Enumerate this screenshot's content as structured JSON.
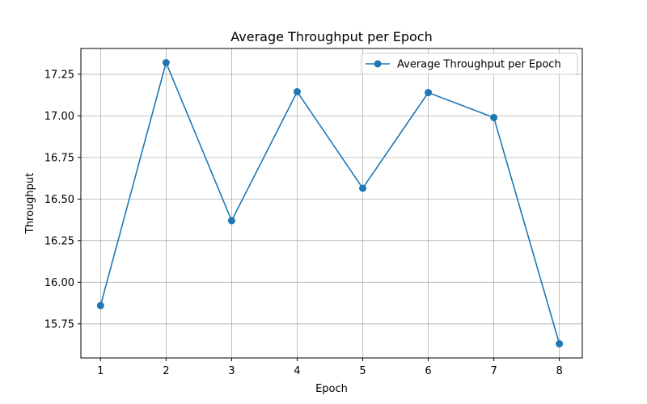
{
  "chart_data": {
    "type": "line",
    "title": "Average Throughput per Epoch",
    "xlabel": "Epoch",
    "ylabel": "Throughput",
    "x": [
      1,
      2,
      3,
      4,
      5,
      6,
      7,
      8
    ],
    "series": [
      {
        "name": "Average Throughput per Epoch",
        "values": [
          15.86,
          17.32,
          16.37,
          17.145,
          16.565,
          17.14,
          16.99,
          15.63
        ],
        "color": "#1f77b4",
        "marker": "circle"
      }
    ],
    "xticks": [
      "1",
      "2",
      "3",
      "4",
      "5",
      "6",
      "7",
      "8"
    ],
    "yticks": [
      15.75,
      16.0,
      16.25,
      16.5,
      16.75,
      17.0,
      17.25
    ],
    "ytick_labels": [
      "15.75",
      "16.00",
      "16.25",
      "16.50",
      "16.75",
      "17.00",
      "17.25"
    ],
    "xlim": [
      0.7,
      8.35
    ],
    "ylim": [
      15.545,
      17.405
    ],
    "grid": true,
    "legend_position": "top-right"
  }
}
